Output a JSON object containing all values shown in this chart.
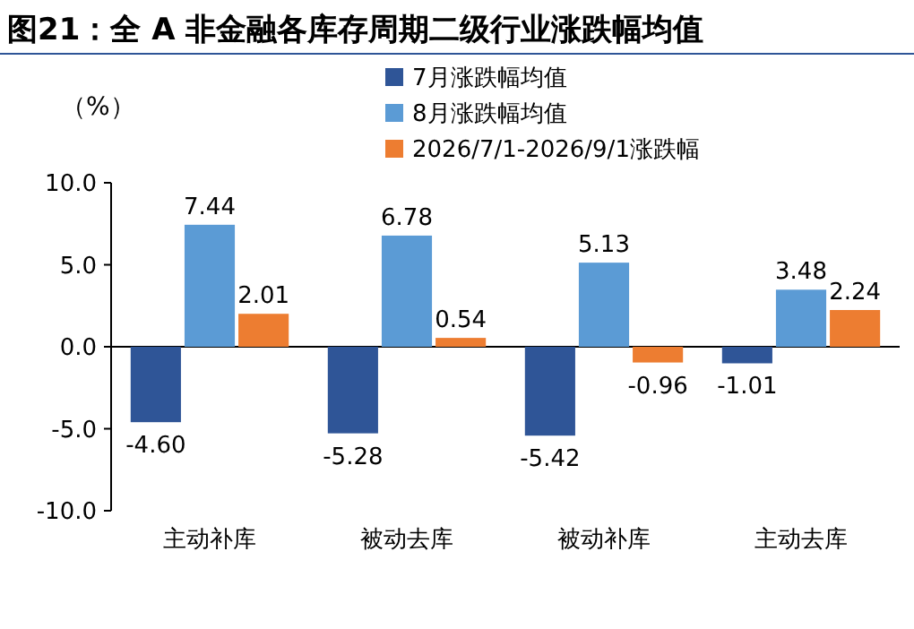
{
  "chart_data": {
    "type": "bar",
    "title": "图21：全 A 非金融各库存周期二级行业涨跌幅均值",
    "ylabel": "（%）",
    "categories": [
      "主动补库",
      "被动去库",
      "被动补库",
      "主动去库"
    ],
    "series": [
      {
        "name": "7月涨跌幅均值",
        "color": "#2f5597",
        "values": [
          -4.6,
          -5.28,
          -5.42,
          -1.01
        ],
        "value_labels": [
          "-4.60",
          "-5.28",
          "-5.42",
          "-1.01"
        ]
      },
      {
        "name": "8月涨跌幅均值",
        "color": "#5b9bd5",
        "values": [
          7.44,
          6.78,
          5.13,
          3.48
        ],
        "value_labels": [
          "7.44",
          "6.78",
          "5.13",
          "3.48"
        ]
      },
      {
        "name": "2026/7/1-2026/9/1涨跌幅",
        "color": "#ed7d31",
        "values": [
          2.01,
          0.54,
          -0.96,
          2.24
        ],
        "value_labels": [
          "2.01",
          "0.54",
          "-0.96",
          "2.24"
        ]
      }
    ],
    "ylim": [
      -10,
      10
    ],
    "yticks": [
      {
        "value": 10,
        "label": "10.0"
      },
      {
        "value": 5,
        "label": "5.0"
      },
      {
        "value": 0,
        "label": "0.0"
      },
      {
        "value": -5,
        "label": "-5.0"
      },
      {
        "value": -10,
        "label": "-10.0"
      }
    ],
    "legend": "top"
  }
}
